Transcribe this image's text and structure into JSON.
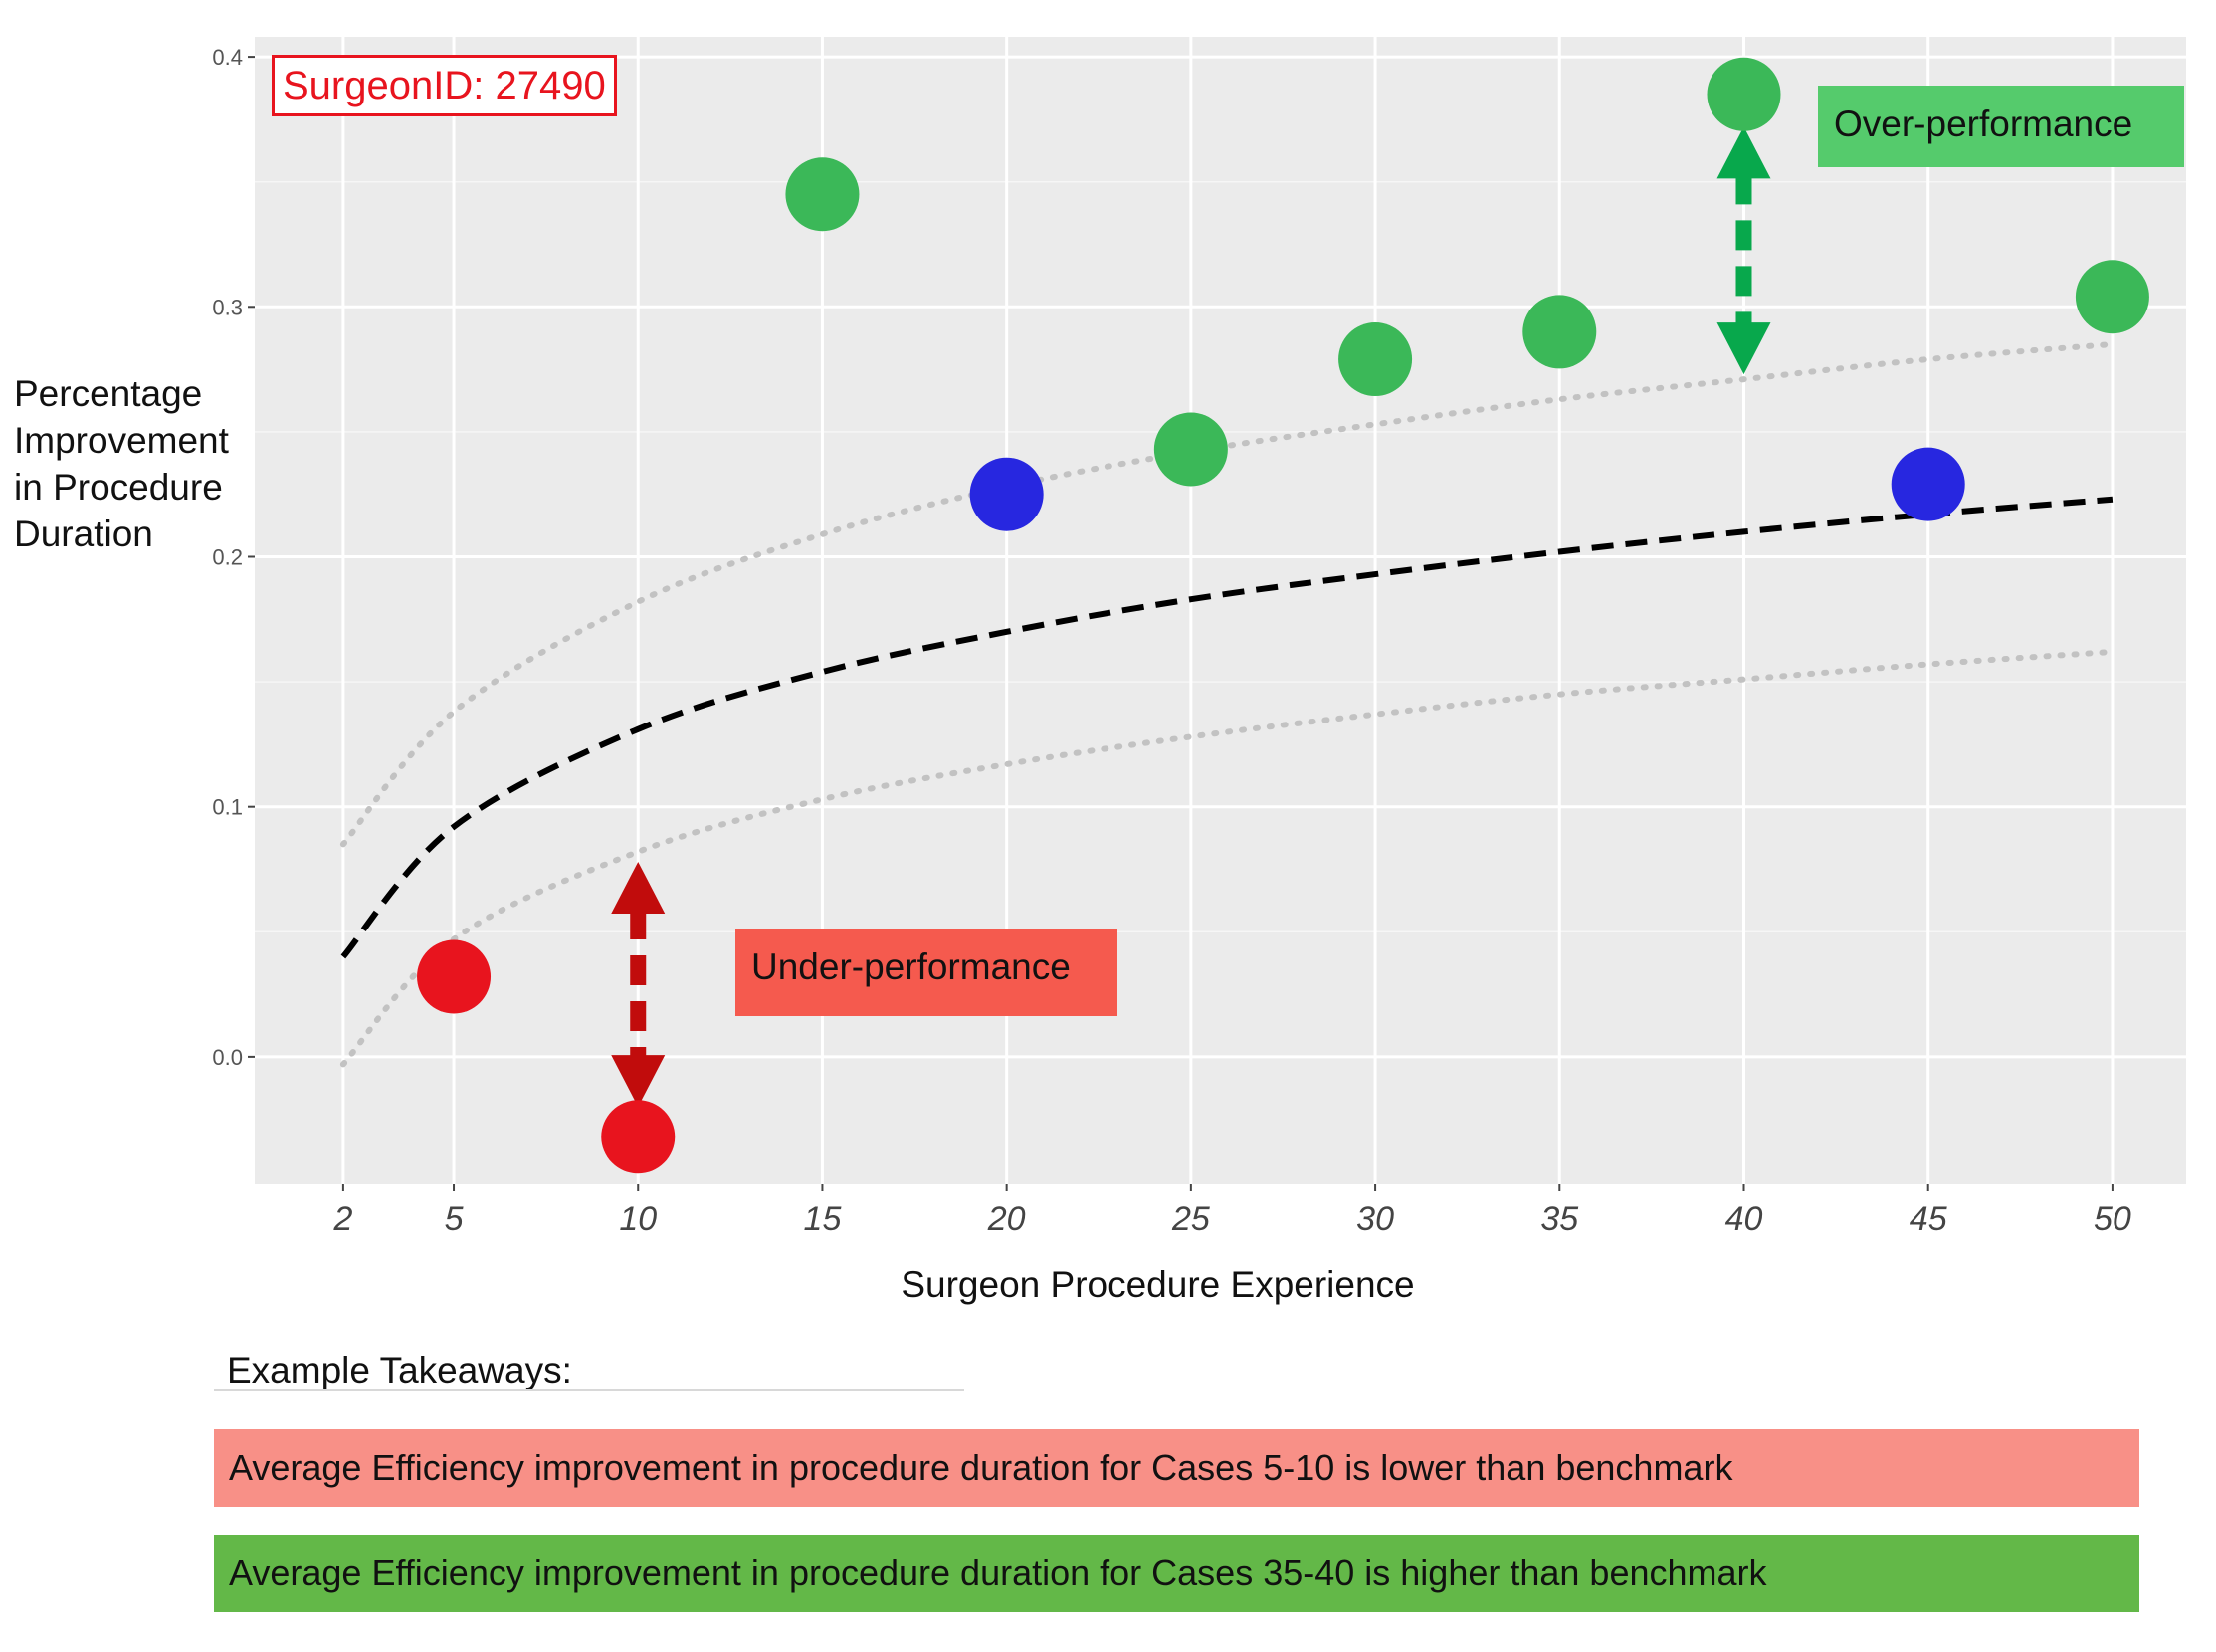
{
  "chart_data": {
    "type": "scatter",
    "xlabel": "Surgeon Procedure Experience",
    "ylabel": "Percentage Improvement in Procedure Duration",
    "ylabel_lines": [
      "Percentage",
      "Improvement",
      "in Procedure",
      "Duration"
    ],
    "x_ticks": [
      2,
      5,
      10,
      15,
      20,
      25,
      30,
      35,
      40,
      45,
      50
    ],
    "y_ticks": [
      0.0,
      0.1,
      0.2,
      0.3,
      0.4
    ],
    "y_tick_labels": [
      "0.0",
      "0.1",
      "0.2",
      "0.3",
      "0.4"
    ],
    "xlim": [
      -0.4,
      52.0
    ],
    "ylim": [
      -0.051,
      0.408
    ],
    "grid": true,
    "background": "#ebebeb",
    "points": [
      {
        "x": 5,
        "y": 0.032,
        "category": "under"
      },
      {
        "x": 10,
        "y": -0.032,
        "category": "under"
      },
      {
        "x": 15,
        "y": 0.345,
        "category": "over"
      },
      {
        "x": 20,
        "y": 0.225,
        "category": "within"
      },
      {
        "x": 25,
        "y": 0.243,
        "category": "over"
      },
      {
        "x": 30,
        "y": 0.279,
        "category": "over"
      },
      {
        "x": 35,
        "y": 0.29,
        "category": "over"
      },
      {
        "x": 40,
        "y": 0.385,
        "category": "over"
      },
      {
        "x": 45,
        "y": 0.229,
        "category": "within"
      },
      {
        "x": 50,
        "y": 0.304,
        "category": "over"
      }
    ],
    "benchmark": {
      "x": [
        2,
        5,
        10,
        15,
        20,
        25,
        30,
        35,
        40,
        45,
        50
      ],
      "y": [
        0.04,
        0.092,
        0.131,
        0.154,
        0.17,
        0.183,
        0.193,
        0.202,
        0.21,
        0.217,
        0.223
      ]
    },
    "upper_band": {
      "x": [
        2,
        5,
        10,
        15,
        20,
        25,
        30,
        35,
        40,
        45,
        50
      ],
      "y": [
        0.085,
        0.138,
        0.182,
        0.209,
        0.228,
        0.242,
        0.253,
        0.263,
        0.271,
        0.279,
        0.285
      ]
    },
    "lower_band": {
      "x": [
        2,
        5,
        10,
        15,
        20,
        25,
        30,
        35,
        40,
        45,
        50
      ],
      "y": [
        -0.003,
        0.047,
        0.082,
        0.103,
        0.117,
        0.128,
        0.137,
        0.145,
        0.151,
        0.157,
        0.162
      ]
    },
    "arrows": [
      {
        "x": 10,
        "from": 0.078,
        "to": -0.02,
        "color": "#c10c0c"
      },
      {
        "x": 40,
        "from": 0.372,
        "to": 0.273,
        "color": "#08a84c"
      }
    ],
    "colors": {
      "under": "#e8141e",
      "over": "#3bb858",
      "within": "#2727e0",
      "benchmark": "#000000",
      "band": "#c2c2c2"
    }
  },
  "annotations": {
    "surgeon_id": "SurgeonID: 27490",
    "over_label": "Over-performance",
    "under_label": "Under-performance"
  },
  "takeaways": {
    "title": "Example Takeaways:",
    "items": [
      "Average Efficiency improvement in procedure duration for Cases 5-10 is lower than benchmark",
      "Average Efficiency improvement in procedure duration for Cases 35-40 is higher than benchmark"
    ],
    "colors": {
      "low": "#f89087",
      "high": "#63b848"
    }
  }
}
